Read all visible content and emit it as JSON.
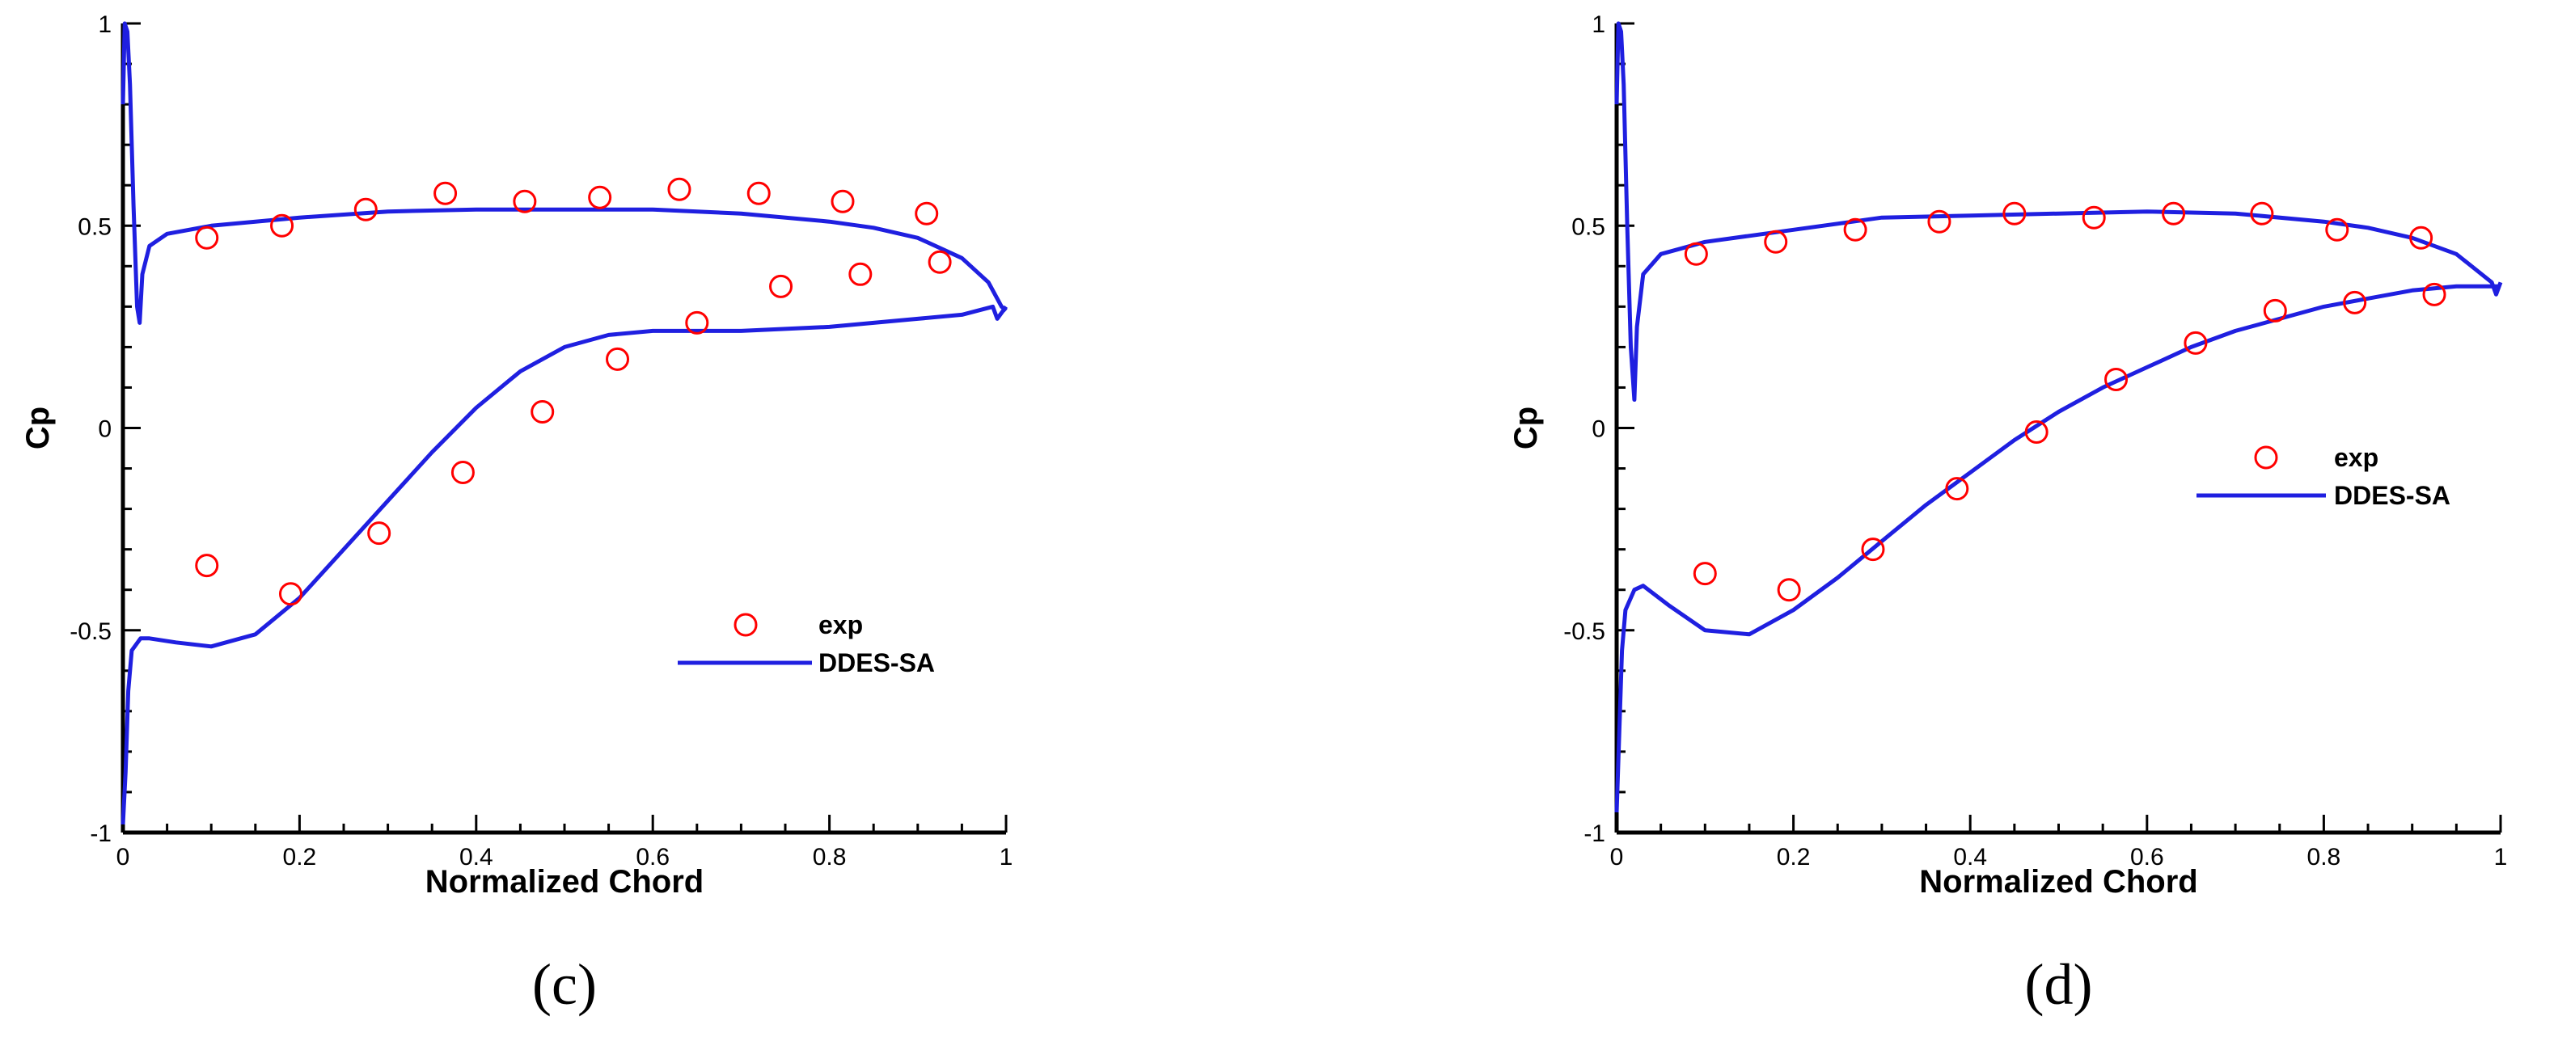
{
  "chart_data": [
    {
      "type": "line",
      "panel_label": "(c)",
      "title": "",
      "xlabel": "Normalized Chord",
      "ylabel": "Cp",
      "xlim": [
        0,
        1
      ],
      "ylim": [
        -1,
        1
      ],
      "xticks": [
        0,
        0.2,
        0.4,
        0.6,
        0.8,
        1
      ],
      "xtick_labels": [
        "0",
        "0.2",
        "0.4",
        "0.6",
        "0.8",
        "1"
      ],
      "yticks": [
        -1,
        -0.5,
        0,
        0.5,
        1
      ],
      "ytick_labels": [
        "-1",
        "-0.5",
        "0",
        "0.5",
        "1"
      ],
      "grid": false,
      "legend_position": "lower-right",
      "colors": {
        "exp": "#ff0000",
        "DDES-SA": "#1f1fe0"
      },
      "series": [
        {
          "name": "exp",
          "kind": "scatter",
          "marker": "open-circle",
          "x": [
            0.095,
            0.18,
            0.275,
            0.365,
            0.455,
            0.54,
            0.63,
            0.72,
            0.815,
            0.91,
            0.925,
            0.835,
            0.745,
            0.65,
            0.56,
            0.475,
            0.385,
            0.29,
            0.19,
            0.095
          ],
          "y": [
            0.47,
            0.5,
            0.54,
            0.58,
            0.56,
            0.57,
            0.59,
            0.58,
            0.56,
            0.53,
            0.41,
            0.38,
            0.35,
            0.26,
            0.17,
            0.04,
            -0.11,
            -0.26,
            -0.41,
            -0.34
          ]
        },
        {
          "name": "DDES-SA",
          "kind": "line",
          "upper_x": [
            0,
            0.002,
            0.005,
            0.008,
            0.012,
            0.016,
            0.019,
            0.022,
            0.03,
            0.05,
            0.1,
            0.2,
            0.3,
            0.4,
            0.5,
            0.6,
            0.7,
            0.8,
            0.85,
            0.9,
            0.95,
            0.98,
            0.995,
            1.0
          ],
          "upper_y": [
            0.8,
            1.0,
            0.98,
            0.85,
            0.55,
            0.3,
            0.26,
            0.38,
            0.45,
            0.48,
            0.5,
            0.52,
            0.535,
            0.54,
            0.54,
            0.54,
            0.53,
            0.51,
            0.495,
            0.47,
            0.42,
            0.36,
            0.3,
            0.29
          ],
          "lower_x": [
            0,
            0.003,
            0.006,
            0.01,
            0.02,
            0.03,
            0.06,
            0.1,
            0.15,
            0.2,
            0.25,
            0.3,
            0.35,
            0.4,
            0.45,
            0.5,
            0.55,
            0.6,
            0.65,
            0.7,
            0.75,
            0.8,
            0.85,
            0.9,
            0.95,
            0.985,
            0.99,
            1.0
          ],
          "lower_y": [
            -0.98,
            -0.85,
            -0.65,
            -0.55,
            -0.52,
            -0.52,
            -0.53,
            -0.54,
            -0.51,
            -0.42,
            -0.3,
            -0.18,
            -0.06,
            0.05,
            0.14,
            0.2,
            0.23,
            0.24,
            0.24,
            0.24,
            0.245,
            0.25,
            0.26,
            0.27,
            0.28,
            0.3,
            0.27,
            0.3
          ]
        }
      ]
    },
    {
      "type": "line",
      "panel_label": "(d)",
      "title": "",
      "xlabel": "Normalized Chord",
      "ylabel": "Cp",
      "xlim": [
        0,
        1
      ],
      "ylim": [
        -1,
        1
      ],
      "xticks": [
        0,
        0.2,
        0.4,
        0.6,
        0.8,
        1
      ],
      "xtick_labels": [
        "0",
        "0.2",
        "0.4",
        "0.6",
        "0.8",
        "1"
      ],
      "yticks": [
        -1,
        -0.5,
        0,
        0.5,
        1
      ],
      "ytick_labels": [
        "-1",
        "-0.5",
        "0",
        "0.5",
        "1"
      ],
      "grid": false,
      "legend_position": "right",
      "colors": {
        "exp": "#ff0000",
        "DDES-SA": "#1f1fe0"
      },
      "series": [
        {
          "name": "exp",
          "kind": "scatter",
          "marker": "open-circle",
          "x": [
            0.09,
            0.18,
            0.27,
            0.365,
            0.45,
            0.54,
            0.63,
            0.73,
            0.815,
            0.91,
            0.925,
            0.835,
            0.745,
            0.655,
            0.565,
            0.475,
            0.385,
            0.29,
            0.195,
            0.1
          ],
          "y": [
            0.43,
            0.46,
            0.49,
            0.51,
            0.53,
            0.52,
            0.53,
            0.53,
            0.49,
            0.47,
            0.33,
            0.31,
            0.29,
            0.21,
            0.12,
            -0.01,
            -0.15,
            -0.3,
            -0.4,
            -0.36
          ]
        },
        {
          "name": "DDES-SA",
          "kind": "line",
          "upper_x": [
            0,
            0.002,
            0.005,
            0.008,
            0.012,
            0.016,
            0.02,
            0.023,
            0.03,
            0.05,
            0.1,
            0.2,
            0.3,
            0.4,
            0.5,
            0.6,
            0.7,
            0.8,
            0.85,
            0.9,
            0.95,
            0.99,
            0.995,
            1.0
          ],
          "upper_y": [
            0.8,
            1.0,
            0.98,
            0.85,
            0.5,
            0.2,
            0.07,
            0.25,
            0.38,
            0.43,
            0.46,
            0.49,
            0.52,
            0.525,
            0.53,
            0.535,
            0.53,
            0.51,
            0.495,
            0.47,
            0.43,
            0.36,
            0.33,
            0.36
          ],
          "lower_x": [
            0,
            0.003,
            0.006,
            0.01,
            0.02,
            0.03,
            0.06,
            0.1,
            0.15,
            0.2,
            0.25,
            0.3,
            0.35,
            0.4,
            0.45,
            0.5,
            0.55,
            0.6,
            0.65,
            0.7,
            0.75,
            0.8,
            0.85,
            0.9,
            0.95,
            1.0
          ],
          "lower_y": [
            -0.95,
            -0.75,
            -0.55,
            -0.45,
            -0.4,
            -0.39,
            -0.44,
            -0.5,
            -0.51,
            -0.45,
            -0.37,
            -0.28,
            -0.19,
            -0.11,
            -0.03,
            0.04,
            0.1,
            0.15,
            0.2,
            0.24,
            0.27,
            0.3,
            0.32,
            0.34,
            0.35,
            0.35
          ]
        }
      ]
    }
  ]
}
